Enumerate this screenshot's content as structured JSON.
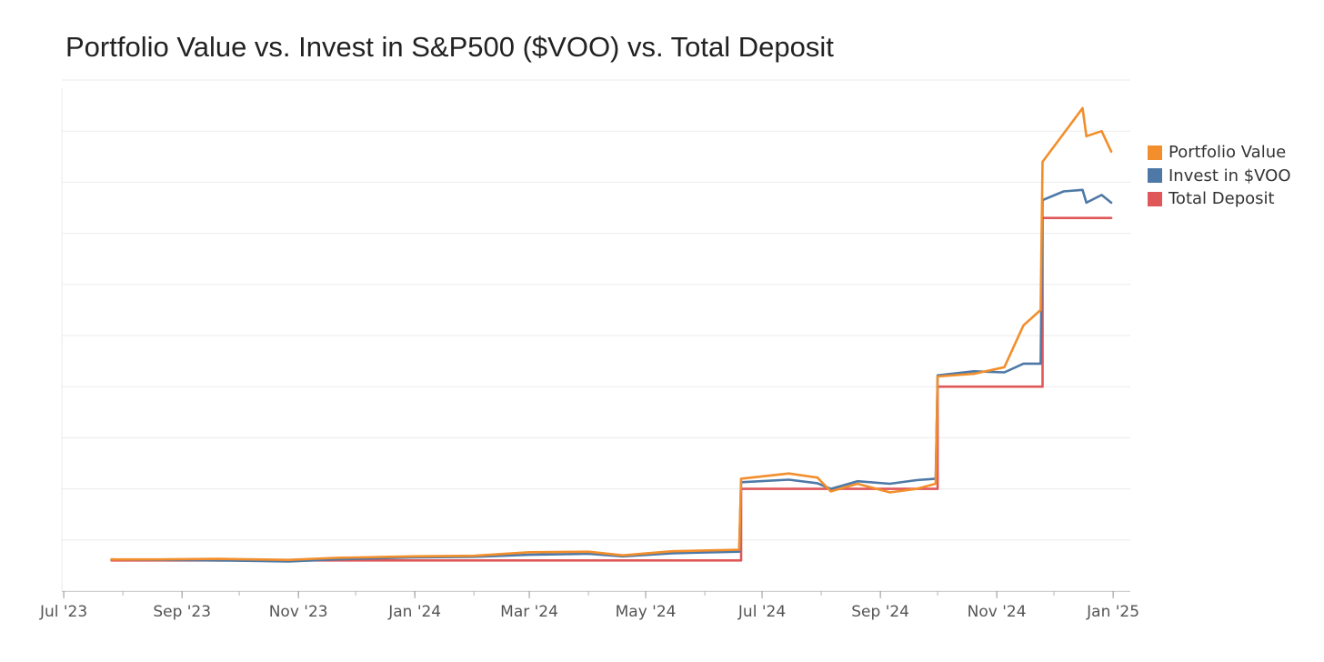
{
  "chart_data": {
    "type": "line",
    "title": "Portfolio Value vs. Invest in S&P500 ($VOO) vs. Total Deposit",
    "xlabel": "",
    "ylabel": "",
    "x_range": [
      "2023-06-30",
      "2025-01-10"
    ],
    "y_range": [
      0,
      10
    ],
    "y_axis_labels_shown": false,
    "grid": "horizontal",
    "legend_position": "right",
    "x_ticks": [
      {
        "date": "2023-07-01",
        "label": "Jul '23"
      },
      {
        "date": "2023-09-01",
        "label": "Sep '23"
      },
      {
        "date": "2023-11-01",
        "label": "Nov '23"
      },
      {
        "date": "2024-01-01",
        "label": "Jan '24"
      },
      {
        "date": "2024-03-01",
        "label": "Mar '24"
      },
      {
        "date": "2024-05-01",
        "label": "May '24"
      },
      {
        "date": "2024-07-01",
        "label": "Jul '24"
      },
      {
        "date": "2024-09-01",
        "label": "Sep '24"
      },
      {
        "date": "2024-11-01",
        "label": "Nov '24"
      },
      {
        "date": "2025-01-01",
        "label": "Jan '25"
      }
    ],
    "series": [
      {
        "name": "Total Deposit",
        "color": "#e05759",
        "points": [
          [
            "2023-07-26",
            0.6
          ],
          [
            "2024-06-20",
            0.6
          ],
          [
            "2024-06-20",
            2.0
          ],
          [
            "2024-10-01",
            2.0
          ],
          [
            "2024-10-01",
            4.0
          ],
          [
            "2024-11-25",
            4.0
          ],
          [
            "2024-11-25",
            7.3
          ],
          [
            "2024-12-31",
            7.3
          ]
        ]
      },
      {
        "name": "Invest in $VOO",
        "color": "#4e79a7",
        "points": [
          [
            "2023-07-26",
            0.62
          ],
          [
            "2023-08-20",
            0.61
          ],
          [
            "2023-09-20",
            0.6
          ],
          [
            "2023-10-27",
            0.58
          ],
          [
            "2023-11-20",
            0.62
          ],
          [
            "2023-12-31",
            0.66
          ],
          [
            "2024-02-01",
            0.67
          ],
          [
            "2024-03-01",
            0.71
          ],
          [
            "2024-04-01",
            0.73
          ],
          [
            "2024-04-19",
            0.68
          ],
          [
            "2024-05-15",
            0.74
          ],
          [
            "2024-06-19",
            0.77
          ],
          [
            "2024-06-20",
            2.13
          ],
          [
            "2024-07-15",
            2.18
          ],
          [
            "2024-07-30",
            2.11
          ],
          [
            "2024-08-06",
            2.0
          ],
          [
            "2024-08-20",
            2.15
          ],
          [
            "2024-09-06",
            2.1
          ],
          [
            "2024-09-20",
            2.17
          ],
          [
            "2024-09-30",
            2.2
          ],
          [
            "2024-10-01",
            4.22
          ],
          [
            "2024-10-20",
            4.3
          ],
          [
            "2024-11-05",
            4.28
          ],
          [
            "2024-11-15",
            4.45
          ],
          [
            "2024-11-24",
            4.45
          ],
          [
            "2024-11-25",
            7.65
          ],
          [
            "2024-12-06",
            7.82
          ],
          [
            "2024-12-16",
            7.85
          ],
          [
            "2024-12-18",
            7.6
          ],
          [
            "2024-12-26",
            7.75
          ],
          [
            "2024-12-31",
            7.6
          ]
        ]
      },
      {
        "name": "Portfolio Value",
        "color": "#f28e2b",
        "points": [
          [
            "2023-07-26",
            0.62
          ],
          [
            "2023-08-20",
            0.62
          ],
          [
            "2023-09-20",
            0.63
          ],
          [
            "2023-10-27",
            0.61
          ],
          [
            "2023-11-20",
            0.65
          ],
          [
            "2023-12-31",
            0.68
          ],
          [
            "2024-02-01",
            0.69
          ],
          [
            "2024-03-01",
            0.76
          ],
          [
            "2024-04-01",
            0.77
          ],
          [
            "2024-04-19",
            0.7
          ],
          [
            "2024-05-15",
            0.78
          ],
          [
            "2024-06-19",
            0.81
          ],
          [
            "2024-06-20",
            2.2
          ],
          [
            "2024-07-15",
            2.3
          ],
          [
            "2024-07-30",
            2.22
          ],
          [
            "2024-08-06",
            1.95
          ],
          [
            "2024-08-20",
            2.1
          ],
          [
            "2024-09-06",
            1.93
          ],
          [
            "2024-09-20",
            2.0
          ],
          [
            "2024-09-30",
            2.1
          ],
          [
            "2024-10-01",
            4.2
          ],
          [
            "2024-10-20",
            4.25
          ],
          [
            "2024-11-05",
            4.38
          ],
          [
            "2024-11-15",
            5.2
          ],
          [
            "2024-11-24",
            5.5
          ],
          [
            "2024-11-25",
            8.4
          ],
          [
            "2024-12-06",
            8.95
          ],
          [
            "2024-12-16",
            9.45
          ],
          [
            "2024-12-18",
            8.9
          ],
          [
            "2024-12-26",
            9.0
          ],
          [
            "2024-12-31",
            8.6
          ]
        ]
      }
    ],
    "legend": [
      {
        "label": "Portfolio Value",
        "color": "#f28e2b"
      },
      {
        "label": "Invest in $VOO",
        "color": "#4e79a7"
      },
      {
        "label": "Total Deposit",
        "color": "#e05759"
      }
    ]
  }
}
